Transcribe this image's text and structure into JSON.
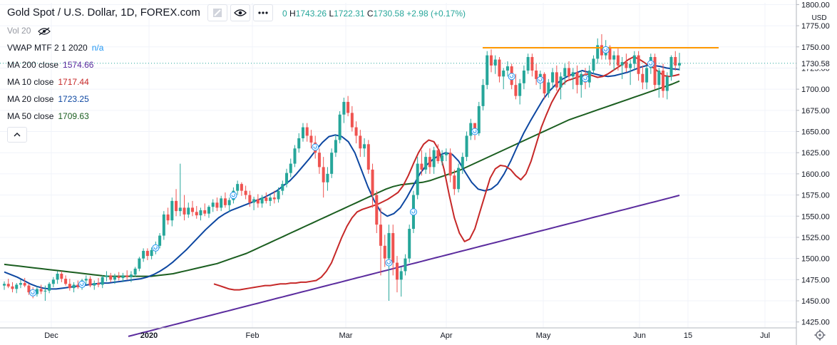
{
  "header": {
    "title": "Gold Spot / U.S. Dollar, 1D, FOREX.com",
    "timeframe_dropdown_icon": "square-icon",
    "visibility_icon": "eye-icon",
    "more_icon": "more-dots-icon",
    "ohlc": {
      "open_tail": "0",
      "high_key": "H",
      "high": "1743.26",
      "low_key": "L",
      "low": "1722.31",
      "close_key": "C",
      "close": "1730.58",
      "change": "+2.98 (+0.17%)"
    }
  },
  "indicators": {
    "vol": {
      "label": "Vol 20",
      "icon": "eye-crossed-icon"
    },
    "vwap": {
      "label": "VWAP MTF 2 1 2020",
      "value": "n/a",
      "color": "#2196f3"
    },
    "ma200": {
      "label": "MA 200 close",
      "value": "1574.66",
      "color": "#5b2c9e"
    },
    "ma10": {
      "label": "MA 10 close",
      "value": "1717.44",
      "color": "#c62828"
    },
    "ma20": {
      "label": "MA 20 close",
      "value": "1723.25",
      "color": "#0d47a1"
    },
    "ma50": {
      "label": "MA 50 close",
      "value": "1709.63",
      "color": "#1b5e20"
    },
    "collapse_icon": "chevron-up-icon"
  },
  "price_scale": {
    "currency": "USD",
    "last_price_label": "1730.58",
    "settings_icon": "gear-icon"
  },
  "chart_data": {
    "type": "candlestick",
    "y_ticks": [
      1425,
      1450,
      1475,
      1500,
      1525,
      1550,
      1575,
      1600,
      1625,
      1650,
      1675,
      1700,
      1725,
      1750,
      1775,
      1800
    ],
    "ylim": [
      1418,
      1802
    ],
    "x_ticks": [
      "Dec",
      "2020",
      "Feb",
      "Mar",
      "Apr",
      "May",
      "Jun",
      "15",
      "Jul"
    ],
    "up_color": "#26a69a",
    "down_color": "#ef5350",
    "last_close": 1730.58,
    "resistance_line": {
      "value": 1749,
      "color": "#ff9800"
    },
    "candles_ohlc": [
      [
        1468,
        1473,
        1463,
        1470
      ],
      [
        1470,
        1476,
        1465,
        1467
      ],
      [
        1467,
        1472,
        1460,
        1464
      ],
      [
        1464,
        1471,
        1459,
        1469
      ],
      [
        1469,
        1475,
        1465,
        1471
      ],
      [
        1471,
        1477,
        1466,
        1468
      ],
      [
        1468,
        1470,
        1457,
        1460
      ],
      [
        1460,
        1466,
        1453,
        1458
      ],
      [
        1458,
        1467,
        1455,
        1464
      ],
      [
        1464,
        1469,
        1458,
        1461
      ],
      [
        1461,
        1468,
        1450,
        1462
      ],
      [
        1462,
        1472,
        1459,
        1470
      ],
      [
        1470,
        1478,
        1466,
        1475
      ],
      [
        1475,
        1485,
        1470,
        1482
      ],
      [
        1482,
        1485,
        1472,
        1476
      ],
      [
        1476,
        1480,
        1468,
        1470
      ],
      [
        1470,
        1476,
        1462,
        1465
      ],
      [
        1465,
        1472,
        1460,
        1469
      ],
      [
        1469,
        1474,
        1464,
        1466
      ],
      [
        1466,
        1476,
        1463,
        1474
      ],
      [
        1474,
        1480,
        1469,
        1476
      ],
      [
        1476,
        1479,
        1466,
        1468
      ],
      [
        1468,
        1474,
        1463,
        1471
      ],
      [
        1471,
        1477,
        1466,
        1469
      ],
      [
        1469,
        1480,
        1465,
        1478
      ],
      [
        1478,
        1485,
        1473,
        1480
      ],
      [
        1480,
        1483,
        1472,
        1475
      ],
      [
        1475,
        1482,
        1470,
        1479
      ],
      [
        1479,
        1484,
        1474,
        1477
      ],
      [
        1477,
        1483,
        1472,
        1480
      ],
      [
        1480,
        1486,
        1475,
        1478
      ],
      [
        1478,
        1485,
        1472,
        1481
      ],
      [
        1481,
        1490,
        1478,
        1488
      ],
      [
        1488,
        1502,
        1485,
        1500
      ],
      [
        1500,
        1512,
        1496,
        1509
      ],
      [
        1509,
        1512,
        1498,
        1503
      ],
      [
        1503,
        1513,
        1499,
        1510
      ],
      [
        1510,
        1520,
        1505,
        1515
      ],
      [
        1515,
        1530,
        1512,
        1527
      ],
      [
        1527,
        1556,
        1522,
        1552
      ],
      [
        1552,
        1560,
        1540,
        1545
      ],
      [
        1545,
        1572,
        1538,
        1568
      ],
      [
        1568,
        1582,
        1550,
        1556
      ],
      [
        1556,
        1612,
        1550,
        1560
      ],
      [
        1560,
        1575,
        1545,
        1552
      ],
      [
        1552,
        1566,
        1548,
        1560
      ],
      [
        1560,
        1568,
        1550,
        1555
      ],
      [
        1555,
        1562,
        1547,
        1551
      ],
      [
        1551,
        1560,
        1545,
        1557
      ],
      [
        1557,
        1565,
        1550,
        1553
      ],
      [
        1553,
        1563,
        1548,
        1561
      ],
      [
        1561,
        1570,
        1555,
        1566
      ],
      [
        1566,
        1572,
        1556,
        1560
      ],
      [
        1560,
        1574,
        1556,
        1571
      ],
      [
        1571,
        1578,
        1560,
        1563
      ],
      [
        1563,
        1572,
        1555,
        1569
      ],
      [
        1569,
        1584,
        1565,
        1580
      ],
      [
        1580,
        1592,
        1575,
        1588
      ],
      [
        1588,
        1590,
        1574,
        1580
      ],
      [
        1580,
        1586,
        1570,
        1575
      ],
      [
        1575,
        1580,
        1561,
        1566
      ],
      [
        1566,
        1573,
        1557,
        1570
      ],
      [
        1570,
        1576,
        1560,
        1565
      ],
      [
        1565,
        1575,
        1560,
        1572
      ],
      [
        1572,
        1578,
        1565,
        1568
      ],
      [
        1568,
        1575,
        1562,
        1572
      ],
      [
        1572,
        1580,
        1565,
        1570
      ],
      [
        1570,
        1584,
        1566,
        1580
      ],
      [
        1580,
        1592,
        1575,
        1588
      ],
      [
        1588,
        1606,
        1584,
        1601
      ],
      [
        1601,
        1618,
        1596,
        1612
      ],
      [
        1612,
        1634,
        1608,
        1630
      ],
      [
        1630,
        1648,
        1625,
        1642
      ],
      [
        1642,
        1660,
        1638,
        1655
      ],
      [
        1655,
        1660,
        1638,
        1645
      ],
      [
        1645,
        1652,
        1630,
        1637
      ],
      [
        1637,
        1645,
        1618,
        1625
      ],
      [
        1625,
        1630,
        1600,
        1608
      ],
      [
        1608,
        1620,
        1572,
        1590
      ],
      [
        1590,
        1608,
        1580,
        1600
      ],
      [
        1600,
        1630,
        1595,
        1625
      ],
      [
        1625,
        1646,
        1620,
        1640
      ],
      [
        1640,
        1674,
        1636,
        1670
      ],
      [
        1670,
        1690,
        1660,
        1685
      ],
      [
        1685,
        1692,
        1668,
        1672
      ],
      [
        1672,
        1680,
        1650,
        1655
      ],
      [
        1655,
        1662,
        1636,
        1645
      ],
      [
        1645,
        1652,
        1620,
        1630
      ],
      [
        1630,
        1642,
        1620,
        1635
      ],
      [
        1635,
        1640,
        1600,
        1605
      ],
      [
        1605,
        1612,
        1560,
        1575
      ],
      [
        1575,
        1580,
        1530,
        1540
      ],
      [
        1540,
        1560,
        1480,
        1515
      ],
      [
        1515,
        1528,
        1490,
        1500
      ],
      [
        1500,
        1540,
        1450,
        1530
      ],
      [
        1530,
        1540,
        1480,
        1495
      ],
      [
        1495,
        1503,
        1460,
        1475
      ],
      [
        1475,
        1490,
        1455,
        1485
      ],
      [
        1485,
        1505,
        1480,
        1500
      ],
      [
        1500,
        1540,
        1495,
        1535
      ],
      [
        1535,
        1580,
        1530,
        1575
      ],
      [
        1575,
        1620,
        1570,
        1612
      ],
      [
        1612,
        1628,
        1598,
        1605
      ],
      [
        1605,
        1625,
        1600,
        1620
      ],
      [
        1620,
        1630,
        1600,
        1608
      ],
      [
        1608,
        1632,
        1600,
        1628
      ],
      [
        1628,
        1635,
        1612,
        1615
      ],
      [
        1615,
        1628,
        1610,
        1622
      ],
      [
        1622,
        1630,
        1615,
        1625
      ],
      [
        1625,
        1630,
        1590,
        1598
      ],
      [
        1598,
        1605,
        1575,
        1582
      ],
      [
        1582,
        1612,
        1578,
        1607
      ],
      [
        1607,
        1625,
        1600,
        1620
      ],
      [
        1620,
        1650,
        1615,
        1645
      ],
      [
        1645,
        1665,
        1640,
        1660
      ],
      [
        1660,
        1660,
        1640,
        1648
      ],
      [
        1648,
        1685,
        1645,
        1680
      ],
      [
        1680,
        1712,
        1675,
        1705
      ],
      [
        1705,
        1745,
        1700,
        1740
      ],
      [
        1740,
        1747,
        1720,
        1728
      ],
      [
        1728,
        1740,
        1718,
        1735
      ],
      [
        1735,
        1738,
        1708,
        1715
      ],
      [
        1715,
        1725,
        1700,
        1722
      ],
      [
        1722,
        1733,
        1715,
        1727
      ],
      [
        1727,
        1730,
        1700,
        1705
      ],
      [
        1705,
        1718,
        1688,
        1692
      ],
      [
        1692,
        1712,
        1682,
        1707
      ],
      [
        1707,
        1728,
        1700,
        1722
      ],
      [
        1722,
        1742,
        1718,
        1738
      ],
      [
        1738,
        1742,
        1715,
        1722
      ],
      [
        1722,
        1730,
        1705,
        1712
      ],
      [
        1712,
        1722,
        1700,
        1718
      ],
      [
        1718,
        1720,
        1688,
        1695
      ],
      [
        1695,
        1712,
        1690,
        1708
      ],
      [
        1708,
        1725,
        1700,
        1720
      ],
      [
        1720,
        1728,
        1698,
        1702
      ],
      [
        1702,
        1720,
        1688,
        1715
      ],
      [
        1715,
        1730,
        1705,
        1725
      ],
      [
        1725,
        1733,
        1710,
        1715
      ],
      [
        1715,
        1725,
        1700,
        1720
      ],
      [
        1720,
        1728,
        1695,
        1705
      ],
      [
        1705,
        1722,
        1690,
        1718
      ],
      [
        1718,
        1725,
        1700,
        1708
      ],
      [
        1708,
        1728,
        1702,
        1722
      ],
      [
        1722,
        1740,
        1718,
        1736
      ],
      [
        1736,
        1760,
        1730,
        1752
      ],
      [
        1752,
        1765,
        1735,
        1740
      ],
      [
        1740,
        1758,
        1735,
        1750
      ],
      [
        1750,
        1752,
        1728,
        1735
      ],
      [
        1735,
        1745,
        1722,
        1740
      ],
      [
        1740,
        1748,
        1722,
        1728
      ],
      [
        1728,
        1738,
        1712,
        1732
      ],
      [
        1732,
        1742,
        1720,
        1725
      ],
      [
        1725,
        1735,
        1705,
        1730
      ],
      [
        1730,
        1745,
        1722,
        1740
      ],
      [
        1740,
        1745,
        1710,
        1718
      ],
      [
        1718,
        1728,
        1700,
        1708
      ],
      [
        1708,
        1728,
        1700,
        1725
      ],
      [
        1725,
        1742,
        1718,
        1738
      ],
      [
        1738,
        1742,
        1700,
        1705
      ],
      [
        1705,
        1725,
        1690,
        1722
      ],
      [
        1722,
        1730,
        1690,
        1698
      ],
      [
        1698,
        1720,
        1688,
        1715
      ],
      [
        1715,
        1740,
        1710,
        1738
      ],
      [
        1738,
        1745,
        1722,
        1728
      ],
      [
        1728,
        1743,
        1722,
        1731
      ]
    ],
    "ma200": [
      1408,
      1409.5,
      1411,
      1412.5,
      1414,
      1415.5,
      1417,
      1418.5,
      1420,
      1421.5,
      1423,
      1424.5,
      1426,
      1427.5,
      1429,
      1430.5,
      1432,
      1433.5,
      1435,
      1436.5,
      1438,
      1439.5,
      1441,
      1442.5,
      1444,
      1445.5,
      1447,
      1448.5,
      1450,
      1451.5,
      1453,
      1454.5,
      1456,
      1457.5,
      1459,
      1460.5,
      1462,
      1463.5,
      1465,
      1466.5,
      1468,
      1469.5,
      1471,
      1472.5,
      1474,
      1475.5,
      1477,
      1478.5,
      1480,
      1481.5,
      1483,
      1484.5,
      1486,
      1487.5,
      1489,
      1490.5,
      1492,
      1493.5,
      1495,
      1496.5,
      1498,
      1499.5,
      1501,
      1502.5,
      1504,
      1505.5,
      1507,
      1508.5,
      1510,
      1511.5,
      1513,
      1514.5,
      1516,
      1517.5,
      1519,
      1520.5,
      1522,
      1523.5,
      1525,
      1526.5,
      1528,
      1529.5,
      1531,
      1532.5,
      1534,
      1535.5,
      1537,
      1538.5,
      1540,
      1541.5,
      1543,
      1544.5,
      1546,
      1547.5,
      1549,
      1550.5,
      1552,
      1553.5,
      1555,
      1556.5,
      1558,
      1559.5,
      1561,
      1562.5,
      1564,
      1565.5,
      1567,
      1568.5,
      1570,
      1571.5,
      1573,
      1574.66
    ],
    "ma50": [
      1493,
      1492,
      1491,
      1490,
      1489,
      1488,
      1487,
      1486,
      1485,
      1484,
      1483,
      1482,
      1481,
      1480,
      1479,
      1479,
      1479,
      1479,
      1479,
      1479,
      1479,
      1480,
      1481,
      1482,
      1484,
      1486,
      1488,
      1490,
      1492,
      1494,
      1497,
      1500,
      1503,
      1506,
      1510,
      1514,
      1518,
      1522,
      1526,
      1530,
      1534,
      1538,
      1542,
      1546,
      1550,
      1554,
      1558,
      1562,
      1566,
      1570,
      1574,
      1578,
      1582,
      1585,
      1587,
      1588,
      1589,
      1590,
      1592,
      1595,
      1598,
      1601,
      1604,
      1608,
      1612,
      1616,
      1620,
      1624,
      1628,
      1632,
      1636,
      1640,
      1644,
      1648,
      1652,
      1656,
      1660,
      1664,
      1667,
      1670,
      1673,
      1676,
      1679,
      1682,
      1685,
      1688,
      1691,
      1694,
      1697,
      1700,
      1703,
      1706,
      1709.63
    ],
    "ma20": [
      1484,
      1481,
      1478,
      1474,
      1470,
      1467,
      1465,
      1464,
      1464,
      1465,
      1466,
      1467,
      1468,
      1469,
      1470,
      1471,
      1471,
      1472,
      1473,
      1474,
      1475,
      1476,
      1478,
      1481,
      1485,
      1490,
      1496,
      1503,
      1510,
      1518,
      1526,
      1534,
      1541,
      1548,
      1553,
      1557,
      1560,
      1563,
      1566,
      1569,
      1572,
      1576,
      1580,
      1586,
      1592,
      1600,
      1609,
      1618,
      1628,
      1637,
      1644,
      1646,
      1644,
      1638,
      1625,
      1605,
      1585,
      1568,
      1555,
      1550,
      1553,
      1560,
      1572,
      1586,
      1600,
      1610,
      1617,
      1622,
      1625,
      1623,
      1615,
      1602,
      1590,
      1582,
      1580,
      1582,
      1588,
      1600,
      1615,
      1632,
      1648,
      1662,
      1675,
      1688,
      1698,
      1706,
      1712,
      1716,
      1719,
      1722,
      1720,
      1718,
      1716,
      1715,
      1716,
      1718,
      1720,
      1723,
      1726,
      1728,
      1728,
      1727,
      1725,
      1724,
      1723.25
    ],
    "ma10": [
      1470,
      1468,
      1466,
      1464,
      1463,
      1463,
      1464,
      1465,
      1466,
      1467,
      1468,
      1468,
      1469,
      1470,
      1470,
      1471,
      1471,
      1472,
      1472,
      1473,
      1474,
      1478,
      1485,
      1495,
      1510,
      1525,
      1538,
      1548,
      1555,
      1558,
      1560,
      1562,
      1564,
      1567,
      1570,
      1574,
      1578,
      1586,
      1598,
      1612,
      1625,
      1635,
      1640,
      1638,
      1628,
      1605,
      1575,
      1548,
      1530,
      1520,
      1523,
      1535,
      1555,
      1575,
      1595,
      1606,
      1610,
      1609,
      1605,
      1598,
      1593,
      1600,
      1615,
      1635,
      1655,
      1670,
      1684,
      1695,
      1705,
      1710,
      1712,
      1714,
      1716,
      1718,
      1716,
      1714,
      1715,
      1718,
      1722,
      1726,
      1730,
      1735,
      1738,
      1736,
      1732,
      1728,
      1725,
      1720,
      1716,
      1715,
      1716,
      1717.44
    ]
  }
}
